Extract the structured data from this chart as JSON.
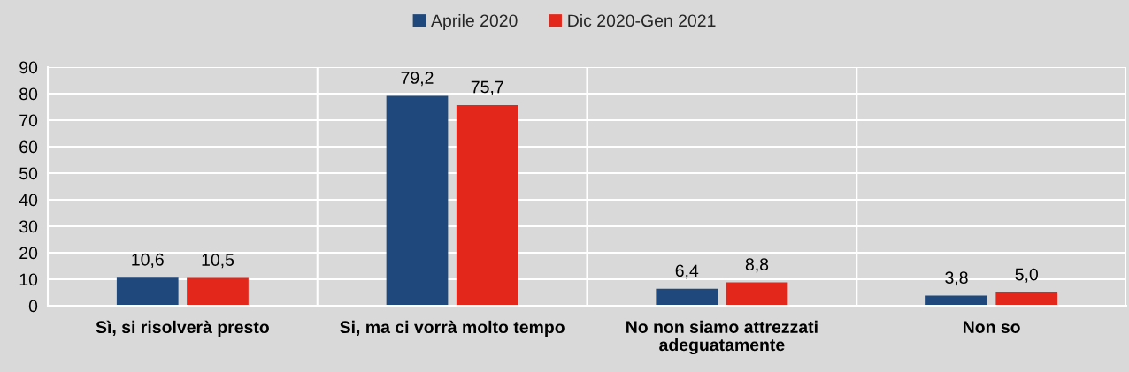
{
  "chart_data": {
    "type": "bar",
    "categories": [
      "Sì, si risolverà presto",
      "Si, ma ci vorrà molto tempo",
      "No non siamo attrezzati\nadeguatamente",
      "Non so"
    ],
    "series": [
      {
        "name": "Aprile 2020",
        "color": "#1f497d",
        "values": [
          10.6,
          79.2,
          6.4,
          3.8
        ],
        "value_labels": [
          "10,6",
          "79,2",
          "6,4",
          "3,8"
        ]
      },
      {
        "name": "Dic 2020-Gen 2021",
        "color": "#e3271b",
        "values": [
          10.5,
          75.7,
          8.8,
          5.0
        ],
        "value_labels": [
          "10,5",
          "75,7",
          "8,8",
          "5,0"
        ]
      }
    ],
    "ylim": [
      0,
      90
    ],
    "yticks": [
      0,
      10,
      20,
      30,
      40,
      50,
      60,
      70,
      80,
      90
    ],
    "grid": true,
    "legend": "top"
  }
}
